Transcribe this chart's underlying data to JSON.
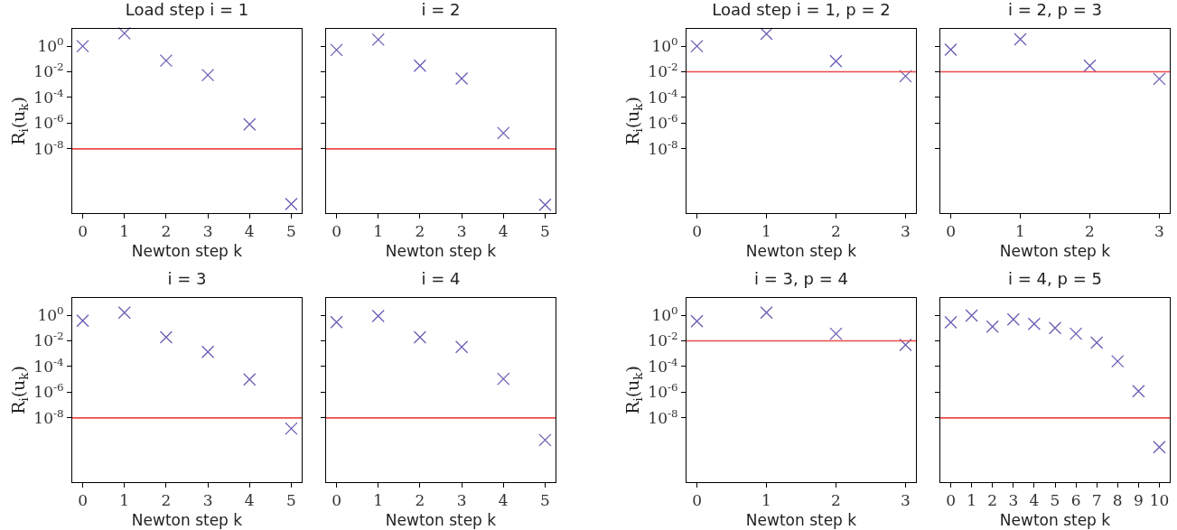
{
  "chart_data": [
    {
      "type": "scatter",
      "title": "Load step i = 1",
      "xlabel": "Newton step k",
      "ylabel": "R$_{i}$(u$_{k}$)",
      "x": [
        0,
        1,
        2,
        3,
        4,
        5
      ],
      "values": [
        1,
        10,
        0.075,
        0.0056,
        8e-07,
        5e-13
      ],
      "color": "#6a5cb4",
      "marker": "cross",
      "log": "y",
      "grid": false,
      "xlim": [
        -0.25,
        5.25
      ],
      "xticks": [
        0,
        1,
        2,
        3,
        4,
        5
      ],
      "ylim": [
        1e-13,
        22
      ],
      "yticks": [
        {
          "value": 1,
          "label": "10$^{0}$"
        },
        {
          "value": 0.01,
          "label": "10$^{-2}$"
        },
        {
          "value": 0.0001,
          "label": "10$^{-4}$"
        },
        {
          "value": 1e-06,
          "label": "10$^{-6}$"
        },
        {
          "value": 1e-08,
          "label": "10$^{-8}$"
        }
      ],
      "ref_lines": [
        {
          "axis": "y",
          "value": 1e-08,
          "color": "#f04848"
        }
      ]
    },
    {
      "type": "scatter",
      "title": "i = 2",
      "xlabel": "Newton step k",
      "x": [
        0,
        1,
        2,
        3,
        4,
        5
      ],
      "values": [
        0.5,
        3.2,
        0.03,
        0.003,
        1.7e-07,
        4.5e-13
      ],
      "color": "#6a5cb4",
      "marker": "cross",
      "log": "y",
      "grid": false,
      "tick_labels": "x",
      "xlim": [
        -0.25,
        5.25
      ],
      "xticks": [
        0,
        1,
        2,
        3,
        4,
        5
      ],
      "ylim": [
        1e-13,
        22
      ],
      "yticks": [
        {
          "value": 1,
          "label": null
        },
        {
          "value": 0.01,
          "label": null
        },
        {
          "value": 0.0001,
          "label": null
        },
        {
          "value": 1e-06,
          "label": null
        },
        {
          "value": 1e-08,
          "label": null
        }
      ],
      "ref_lines": [
        {
          "axis": "y",
          "value": 1e-08,
          "color": "#f04848"
        }
      ]
    },
    {
      "type": "scatter",
      "title": "Load step i = 1, p = 2",
      "xlabel": "Newton step k",
      "ylabel": "R$_{i}$(u$_{k}$)",
      "x": [
        0,
        1,
        2,
        3
      ],
      "values": [
        1,
        9,
        0.068,
        0.0046
      ],
      "color": "#6a5cb4",
      "marker": "cross",
      "log": "y",
      "grid": false,
      "xlim": [
        -0.15,
        3.15
      ],
      "xticks": [
        0,
        1,
        2,
        3
      ],
      "ylim": [
        1e-13,
        22
      ],
      "yticks": [
        {
          "value": 1,
          "label": "10$^{0}$"
        },
        {
          "value": 0.01,
          "label": "10$^{-2}$"
        },
        {
          "value": 0.0001,
          "label": "10$^{-4}$"
        },
        {
          "value": 1e-06,
          "label": "10$^{-6}$"
        },
        {
          "value": 1e-08,
          "label": "10$^{-8}$"
        }
      ],
      "ref_lines": [
        {
          "axis": "y",
          "value": 0.01,
          "color": "#f04848"
        }
      ]
    },
    {
      "type": "scatter",
      "title": "i = 2, p = 3",
      "xlabel": "Newton step k",
      "x": [
        0,
        1,
        2,
        3
      ],
      "values": [
        0.53,
        3.4,
        0.03,
        0.0028
      ],
      "color": "#6a5cb4",
      "marker": "cross",
      "log": "y",
      "grid": false,
      "tick_labels": "x",
      "xlim": [
        -0.15,
        3.15
      ],
      "xticks": [
        0,
        1,
        2,
        3
      ],
      "ylim": [
        1e-13,
        22
      ],
      "yticks": [
        {
          "value": 1,
          "label": null
        },
        {
          "value": 0.01,
          "label": null
        },
        {
          "value": 0.0001,
          "label": null
        },
        {
          "value": 1e-06,
          "label": null
        },
        {
          "value": 1e-08,
          "label": null
        }
      ],
      "ref_lines": [
        {
          "axis": "y",
          "value": 0.01,
          "color": "#f04848"
        }
      ]
    },
    {
      "type": "scatter",
      "title": "i = 3",
      "xlabel": "Newton step k",
      "ylabel": "R$_{i}$(u$_{k}$)",
      "x": [
        0,
        1,
        2,
        3,
        4,
        5
      ],
      "values": [
        0.37,
        1.6,
        0.019,
        0.0014,
        1e-05,
        1.5e-09
      ],
      "color": "#6a5cb4",
      "marker": "cross",
      "log": "y",
      "grid": false,
      "xlim": [
        -0.25,
        5.25
      ],
      "xticks": [
        0,
        1,
        2,
        3,
        4,
        5
      ],
      "ylim": [
        1e-13,
        22
      ],
      "yticks": [
        {
          "value": 1,
          "label": "10$^{0}$"
        },
        {
          "value": 0.01,
          "label": "10$^{-2}$"
        },
        {
          "value": 0.0001,
          "label": "10$^{-4}$"
        },
        {
          "value": 1e-06,
          "label": "10$^{-6}$"
        },
        {
          "value": 1e-08,
          "label": "10$^{-8}$"
        }
      ],
      "ref_lines": [
        {
          "axis": "y",
          "value": 1e-08,
          "color": "#f04848"
        }
      ]
    },
    {
      "type": "scatter",
      "title": "i = 4",
      "xlabel": "Newton step k",
      "x": [
        0,
        1,
        2,
        3,
        4,
        5
      ],
      "values": [
        0.29,
        0.87,
        0.019,
        0.0034,
        1.1e-05,
        1.9e-10
      ],
      "color": "#6a5cb4",
      "marker": "cross",
      "log": "y",
      "grid": false,
      "tick_labels": "x",
      "xlim": [
        -0.25,
        5.25
      ],
      "xticks": [
        0,
        1,
        2,
        3,
        4,
        5
      ],
      "ylim": [
        1e-13,
        22
      ],
      "yticks": [
        {
          "value": 1,
          "label": null
        },
        {
          "value": 0.01,
          "label": null
        },
        {
          "value": 0.0001,
          "label": null
        },
        {
          "value": 1e-06,
          "label": null
        },
        {
          "value": 1e-08,
          "label": null
        }
      ],
      "ref_lines": [
        {
          "axis": "y",
          "value": 1e-08,
          "color": "#f04848"
        }
      ]
    },
    {
      "type": "scatter",
      "title": "i = 3, p = 4",
      "xlabel": "Newton step k",
      "ylabel": "R$_{i}$(u$_{k}$)",
      "x": [
        0,
        1,
        2,
        3
      ],
      "values": [
        0.34,
        1.6,
        0.036,
        0.0049
      ],
      "color": "#6a5cb4",
      "marker": "cross",
      "log": "y",
      "grid": false,
      "xlim": [
        -0.15,
        3.15
      ],
      "xticks": [
        0,
        1,
        2,
        3
      ],
      "ylim": [
        1e-13,
        22
      ],
      "yticks": [
        {
          "value": 1,
          "label": "10$^{0}$"
        },
        {
          "value": 0.01,
          "label": "10$^{-2}$"
        },
        {
          "value": 0.0001,
          "label": "10$^{-4}$"
        },
        {
          "value": 1e-06,
          "label": "10$^{-6}$"
        },
        {
          "value": 1e-08,
          "label": "10$^{-8}$"
        }
      ],
      "ref_lines": [
        {
          "axis": "y",
          "value": 0.01,
          "color": "#f04848"
        }
      ]
    },
    {
      "type": "scatter",
      "title": "i = 4, p = 5",
      "xlabel": "Newton step k",
      "x": [
        0,
        1,
        2,
        3,
        4,
        5,
        6,
        7,
        8,
        9,
        10
      ],
      "values": [
        0.28,
        0.93,
        0.13,
        0.47,
        0.21,
        0.1,
        0.036,
        0.0072,
        0.00026,
        1.2e-06,
        5.3e-11
      ],
      "color": "#6a5cb4",
      "marker": "cross",
      "log": "y",
      "grid": false,
      "tick_labels": "x",
      "xlim": [
        -0.5,
        10.5
      ],
      "xticks": [
        0,
        1,
        2,
        3,
        4,
        5,
        6,
        7,
        8,
        9,
        10
      ],
      "ylim": [
        1e-13,
        22
      ],
      "yticks": [
        {
          "value": 1,
          "label": null
        },
        {
          "value": 0.01,
          "label": null
        },
        {
          "value": 0.0001,
          "label": null
        },
        {
          "value": 1e-06,
          "label": null
        },
        {
          "value": 1e-08,
          "label": null
        }
      ],
      "ref_lines": [
        {
          "axis": "y",
          "value": 1e-08,
          "color": "#f04848"
        }
      ]
    }
  ]
}
